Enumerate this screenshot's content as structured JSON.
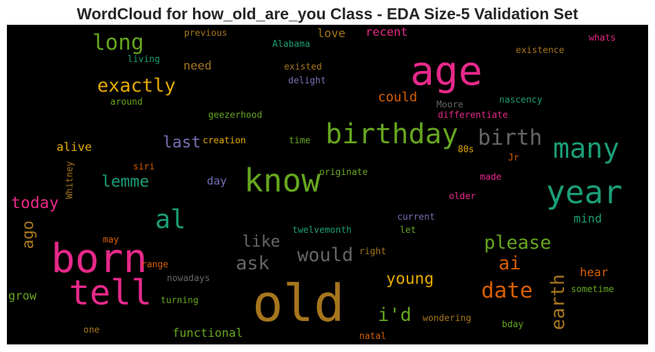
{
  "title": "WordCloud for how_old_are_you Class - EDA Size-5 Validation Set",
  "words": [
    {
      "text": "age",
      "color": "#e7298a"
    },
    {
      "text": "old",
      "color": "#a6761d"
    },
    {
      "text": "born",
      "color": "#e7298a"
    },
    {
      "text": "know",
      "color": "#66a61e"
    },
    {
      "text": "year",
      "color": "#1b9e77"
    },
    {
      "text": "birthday",
      "color": "#66a61e"
    },
    {
      "text": "tell",
      "color": "#e7298a"
    },
    {
      "text": "many",
      "color": "#1b9e77"
    },
    {
      "text": "birth",
      "color": "#666666"
    },
    {
      "text": "long",
      "color": "#66a61e"
    },
    {
      "text": "exactly",
      "color": "#e6ab02"
    },
    {
      "text": "al",
      "color": "#1b9e77"
    },
    {
      "text": "date",
      "color": "#d95f02"
    },
    {
      "text": "please",
      "color": "#66a61e"
    },
    {
      "text": "would",
      "color": "#666666"
    },
    {
      "text": "earth",
      "color": "#a6761d"
    },
    {
      "text": "ask",
      "color": "#666666"
    },
    {
      "text": "like",
      "color": "#666666"
    },
    {
      "text": "young",
      "color": "#e6ab02"
    },
    {
      "text": "i'd",
      "color": "#66a61e"
    },
    {
      "text": "ai",
      "color": "#d95f02"
    },
    {
      "text": "last",
      "color": "#7570b3"
    },
    {
      "text": "today",
      "color": "#e7298a"
    },
    {
      "text": "lemme",
      "color": "#1b9e77"
    },
    {
      "text": "ago",
      "color": "#a6761d"
    },
    {
      "text": "could",
      "color": "#d95f02"
    },
    {
      "text": "need",
      "color": "#a6761d"
    },
    {
      "text": "alive",
      "color": "#e6ab02"
    },
    {
      "text": "love",
      "color": "#a6761d"
    },
    {
      "text": "recent",
      "color": "#e7298a"
    },
    {
      "text": "functional",
      "color": "#66a61e"
    },
    {
      "text": "hear",
      "color": "#d95f02"
    },
    {
      "text": "mind",
      "color": "#1b9e77"
    },
    {
      "text": "grow",
      "color": "#66a61e"
    },
    {
      "text": "day",
      "color": "#7570b3"
    },
    {
      "text": "previous",
      "color": "#a6761d"
    },
    {
      "text": "Alabama",
      "color": "#1b9e77"
    },
    {
      "text": "living",
      "color": "#1b9e77"
    },
    {
      "text": "existed",
      "color": "#a6761d"
    },
    {
      "text": "delight",
      "color": "#7570b3"
    },
    {
      "text": "existence",
      "color": "#a6761d"
    },
    {
      "text": "whats",
      "color": "#e7298a"
    },
    {
      "text": "around",
      "color": "#66a61e"
    },
    {
      "text": "nascency",
      "color": "#1b9e77"
    },
    {
      "text": "Moore",
      "color": "#666666"
    },
    {
      "text": "differentiate",
      "color": "#e7298a"
    },
    {
      "text": "geezerhood",
      "color": "#66a61e"
    },
    {
      "text": "creation",
      "color": "#e6ab02"
    },
    {
      "text": "time",
      "color": "#66a61e"
    },
    {
      "text": "80s",
      "color": "#e6ab02"
    },
    {
      "text": "Jr",
      "color": "#d95f02"
    },
    {
      "text": "Whitney",
      "color": "#a6761d"
    },
    {
      "text": "siri",
      "color": "#d95f02"
    },
    {
      "text": "originate",
      "color": "#66a61e"
    },
    {
      "text": "made",
      "color": "#e7298a"
    },
    {
      "text": "older",
      "color": "#e7298a"
    },
    {
      "text": "current",
      "color": "#7570b3"
    },
    {
      "text": "let",
      "color": "#66a61e"
    },
    {
      "text": "twelvemonth",
      "color": "#1b9e77"
    },
    {
      "text": "may",
      "color": "#d95f02"
    },
    {
      "text": "right",
      "color": "#a6761d"
    },
    {
      "text": "range",
      "color": "#d95f02"
    },
    {
      "text": "nowadays",
      "color": "#666666"
    },
    {
      "text": "turning",
      "color": "#66a61e"
    },
    {
      "text": "sometime",
      "color": "#66a61e"
    },
    {
      "text": "one",
      "color": "#a6761d"
    },
    {
      "text": "wondering",
      "color": "#a6761d"
    },
    {
      "text": "bday",
      "color": "#66a61e"
    },
    {
      "text": "natal",
      "color": "#d95f02"
    }
  ]
}
